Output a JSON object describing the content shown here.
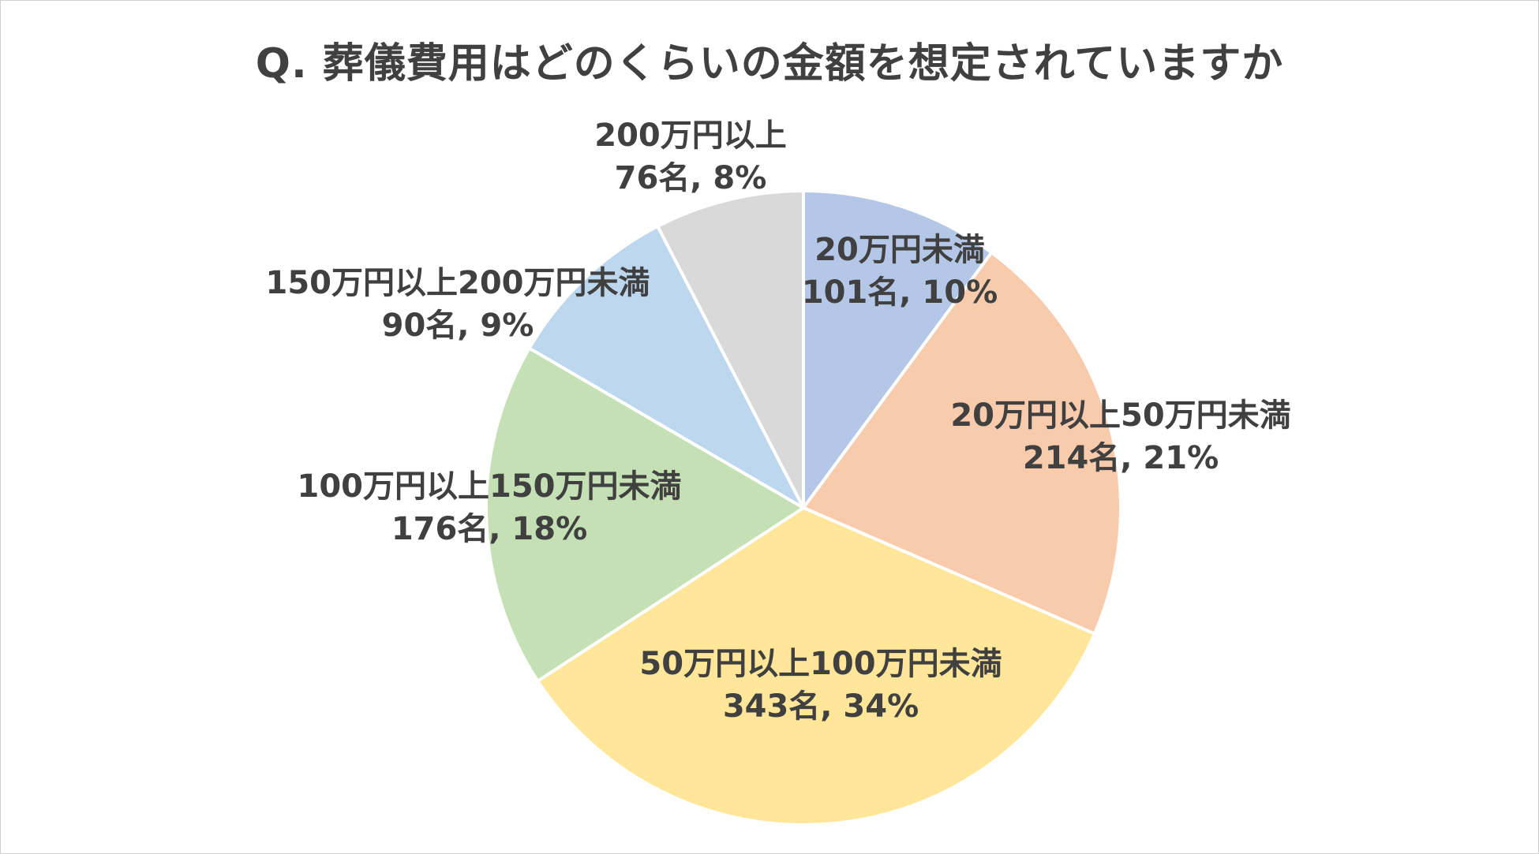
{
  "chart_data": {
    "type": "pie",
    "title": "Q. 葬儀費用はどのくらいの金額を想定されていますか",
    "slices": [
      {
        "label": "20万円未満",
        "count_text": "101名",
        "percent_text": "10%",
        "value": 101,
        "color": "#B4C7E7"
      },
      {
        "label": "20万円以上50万円未満",
        "count_text": "214名",
        "percent_text": "21%",
        "value": 214,
        "color": "#F8CBAD"
      },
      {
        "label": "50万円以上100万円未満",
        "count_text": "343名",
        "percent_text": "34%",
        "value": 343,
        "color": "#FFE699"
      },
      {
        "label": "100万円以上150万円未満",
        "count_text": "176名",
        "percent_text": "18%",
        "value": 176,
        "color": "#C5E0B4"
      },
      {
        "label": "150万円以上200万円未満",
        "count_text": "90名",
        "percent_text": "9%",
        "value": 90,
        "color": "#BDD7EE"
      },
      {
        "label": "200万円以上",
        "count_text": "76名",
        "percent_text": "8%",
        "value": 76,
        "color": "#D9D9D9"
      }
    ],
    "start_angle": "12 o'clock",
    "direction": "clockwise",
    "legend": "none",
    "slice_border_color": "#FFFFFF"
  }
}
